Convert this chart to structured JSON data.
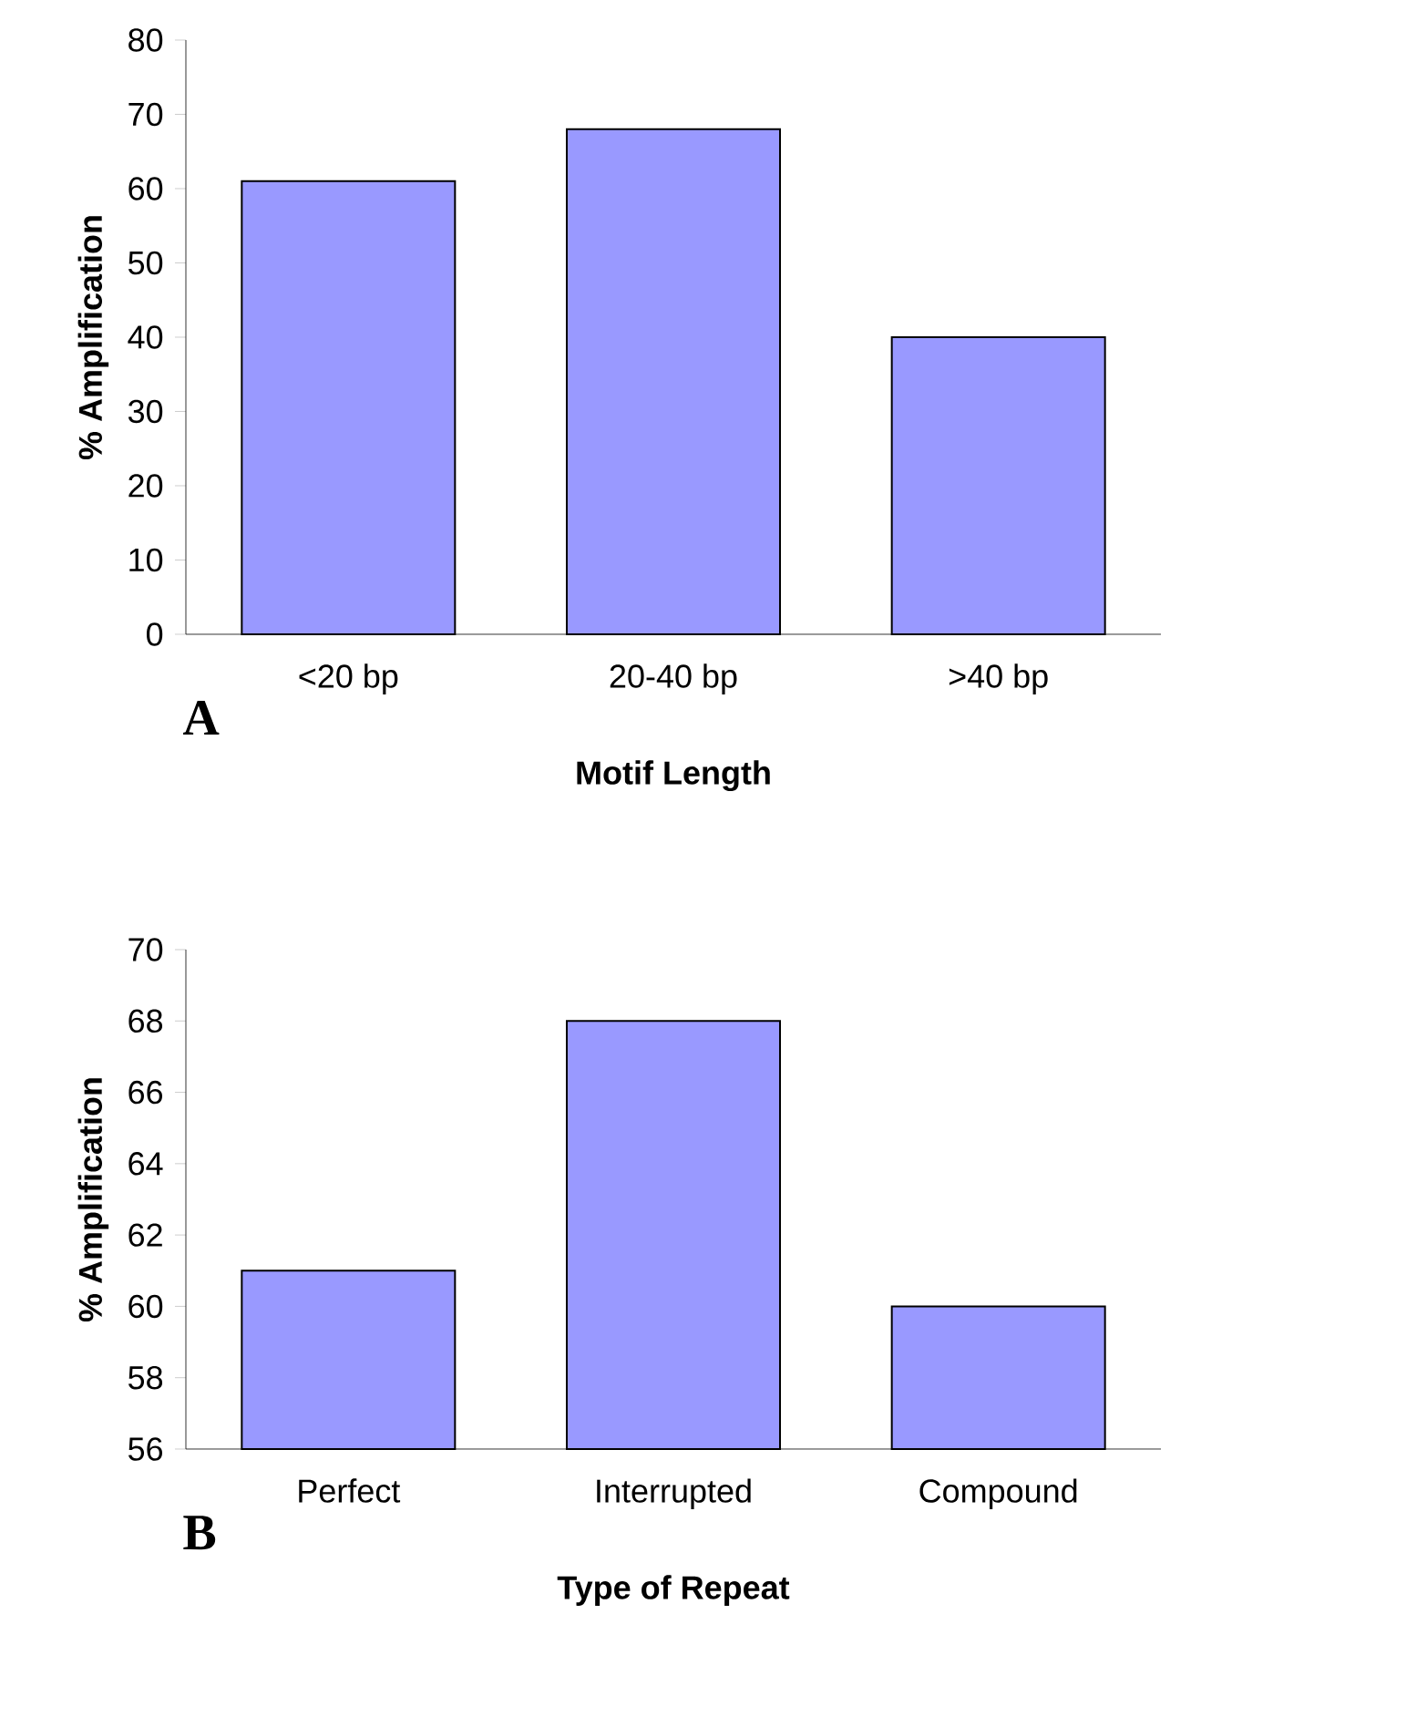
{
  "chart_data": [
    {
      "type": "bar",
      "categories": [
        "<20 bp",
        "20-40 bp",
        ">40 bp"
      ],
      "values": [
        61,
        68,
        40
      ],
      "color": "#9999ff",
      "xlabel": "Motif Length",
      "ylabel": "% Amplification",
      "ylim": [
        0,
        80
      ],
      "yticks": [
        0,
        10,
        20,
        30,
        40,
        50,
        60,
        70,
        80
      ],
      "annotations": [
        "A"
      ]
    },
    {
      "type": "bar",
      "categories": [
        "Perfect",
        "Interrupted",
        "Compound"
      ],
      "values": [
        61,
        68,
        60
      ],
      "color": "#9999ff",
      "xlabel": "Type of Repeat",
      "ylabel": "% Amplification",
      "ylim": [
        56,
        70
      ],
      "yticks": [
        56,
        58,
        60,
        62,
        64,
        66,
        68,
        70
      ],
      "annotations": [
        "B"
      ]
    }
  ]
}
